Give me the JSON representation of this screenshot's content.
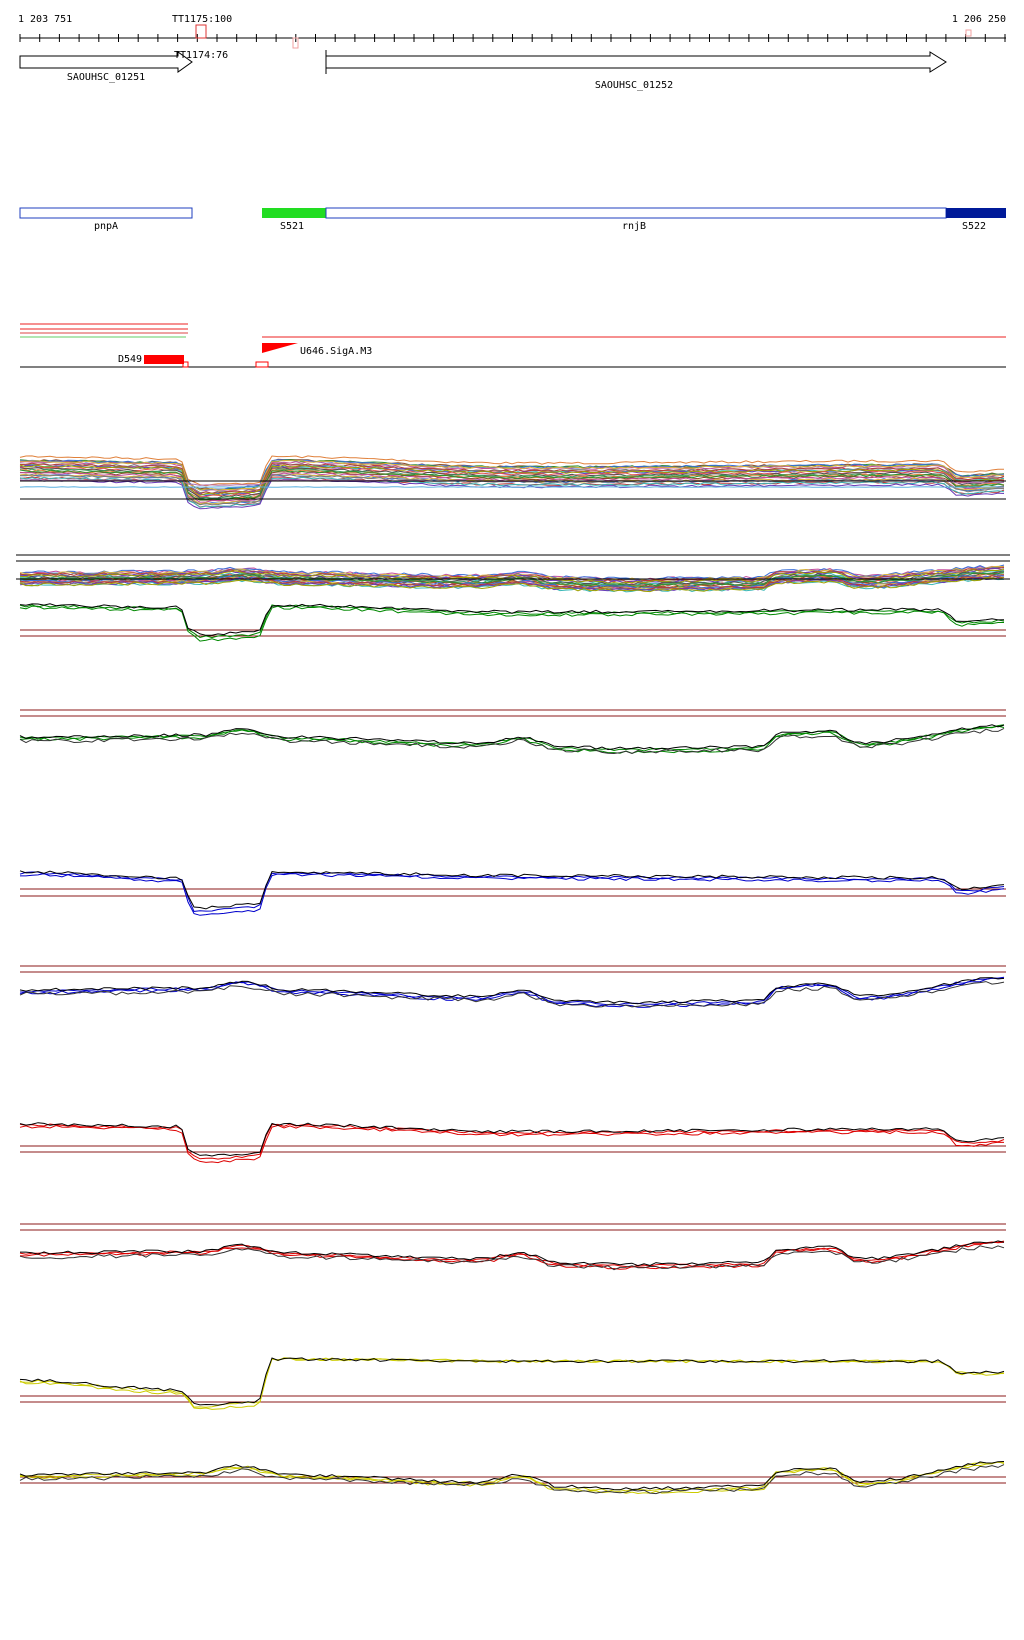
{
  "ruler": {
    "start_label": "1 203 751",
    "end_label": "1 206 250"
  },
  "terminators": [
    {
      "label": "TT1175:100"
    },
    {
      "label": "TT1174:76"
    }
  ],
  "genes": [
    {
      "label": "SAOUHSC_01251",
      "strand": "+"
    },
    {
      "label": "SAOUHSC_01252",
      "strand": "+"
    }
  ],
  "features": [
    {
      "label": "pnpA",
      "style": "outline",
      "color": "#1f3fbf"
    },
    {
      "label": "S521",
      "style": "filled",
      "color": "#22dd22"
    },
    {
      "label": "rnjB",
      "style": "outline",
      "color": "#1f3fbf"
    },
    {
      "label": "S522",
      "style": "filled",
      "color": "#001a99"
    }
  ],
  "regulatory": {
    "downshift_label": "D549",
    "upshift_label": "U646.SigA.M3",
    "colors": {
      "downshift": "#ff0000",
      "upshift": "#ff0000"
    }
  },
  "track_colors": {
    "green": "#008800",
    "blue": "#0000cc",
    "red": "#dd0000",
    "yellow": "#cccc00",
    "black": "#000000",
    "threshold": "#8b1a1a"
  },
  "icons": [
    "gene-arrow-icon",
    "terminator-marker-icon",
    "promoter-flag-icon"
  ]
}
